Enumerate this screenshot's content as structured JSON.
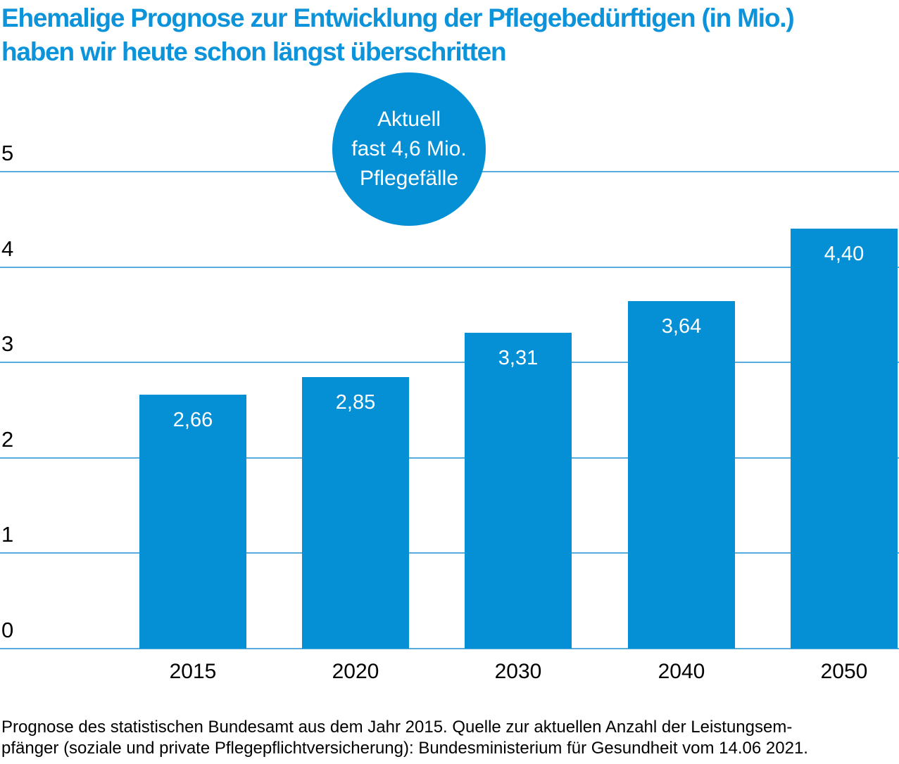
{
  "title": {
    "line1": "Ehemalige Prognose zur Entwicklung der Pflegebedürftigen (in Mio.)",
    "line2": "haben wir heute schon längst überschritten"
  },
  "annotation_bubble": {
    "line1": "Aktuell",
    "line2": "fast 4,6 Mio.",
    "line3": "Pflegefälle"
  },
  "footer": {
    "line1": "Prognose des statistischen Bundesamt aus dem Jahr 2015. Quelle zur aktuellen Anzahl der Leistungsem-",
    "line2": "pfänger (soziale und private Pflegepflichtversicherung): Bundesministerium für Gesundheit vom 14.06 2021."
  },
  "colors": {
    "bar": "#0590d5",
    "bubble": "#0590d5",
    "title_text": "#0c93d9",
    "gridline": "#58acdd",
    "bar_label_text": "#ffffff",
    "axis_text": "#000000"
  },
  "chart_data": {
    "type": "bar",
    "title": "Ehemalige Prognose zur Entwicklung der Pflegebedürftigen (in Mio.) haben wir heute schon längst überschritten",
    "categories": [
      "2015",
      "2020",
      "2030",
      "2040",
      "2050"
    ],
    "values": [
      2.66,
      2.85,
      3.31,
      3.64,
      4.4
    ],
    "value_labels": [
      "2,66",
      "2,85",
      "3,31",
      "3,64",
      "4,40"
    ],
    "xlabel": "",
    "ylabel": "",
    "ylim": [
      0,
      5
    ],
    "yticks": [
      0,
      1,
      2,
      3,
      4,
      5
    ],
    "grid": "horizontal",
    "legend": "none",
    "annotation": "Aktuell fast 4,6 Mio. Pflegefälle",
    "source_note": "Prognose des statistischen Bundesamt aus dem Jahr 2015. Quelle zur aktuellen Anzahl der Leistungsempfänger (soziale und private Pflegepflichtversicherung): Bundesministerium für Gesundheit vom 14.06 2021."
  }
}
